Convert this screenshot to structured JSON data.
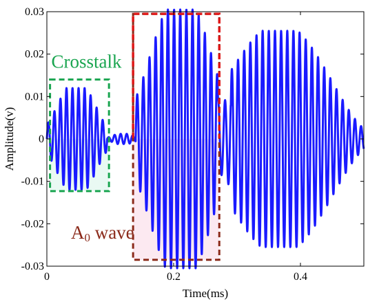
{
  "chart_data": {
    "type": "line",
    "title": "",
    "xlabel": "Time(ms)",
    "ylabel": "Amplitude(v)",
    "xlim": [
      0,
      0.5
    ],
    "ylim": [
      -0.03,
      0.03
    ],
    "xticks": [
      0,
      0.2,
      0.4
    ],
    "xtick_labels": [
      "0",
      "0.2",
      "0.4"
    ],
    "yticks": [
      -0.03,
      -0.02,
      -0.01,
      0,
      0.01,
      0.02,
      0.03
    ],
    "ytick_labels": [
      "-0.03",
      "-0.02",
      "-0.01",
      "0",
      "0.01",
      "0.02",
      "0.03"
    ],
    "grid": false,
    "series": [
      {
        "color": "#1a1aff",
        "packets": [
          {
            "t_start": 0.0,
            "t_end": 0.095,
            "t_peak": 0.045,
            "amplitude": 0.012,
            "freq_khz": 105
          },
          {
            "t_start": 0.095,
            "t_end": 0.145,
            "t_peak": 0.12,
            "amplitude": 0.0012,
            "freq_khz": 105
          },
          {
            "t_start": 0.14,
            "t_end": 0.29,
            "t_peak": 0.205,
            "amplitude": 0.0305,
            "freq_khz": 103
          },
          {
            "t_start": 0.27,
            "t_end": 0.5,
            "t_peak": 0.33,
            "amplitude": 0.0255,
            "freq_khz": 103
          }
        ]
      }
    ],
    "annotations": [
      {
        "label": "Crosstalk",
        "color": "#1aa550",
        "x_range": [
          0.005,
          0.098
        ],
        "y_range": [
          -0.0123,
          0.014
        ],
        "label_anchor": [
          0.007,
          0.0168
        ]
      },
      {
        "label": "A0 wave",
        "label_main": "A",
        "label_sub": "0",
        "label_rest": " wave",
        "color": "#8b2a1a",
        "fill": "#fbe3ee",
        "x_range": [
          0.136,
          0.272
        ],
        "y_range": [
          -0.0285,
          0.0295
        ],
        "label_anchor": [
          0.038,
          -0.0235
        ]
      }
    ],
    "highlight_box": {
      "color": "#e01818",
      "x_range": [
        0.136,
        0.272
      ],
      "y_range": [
        0.0002,
        0.0295
      ]
    }
  }
}
